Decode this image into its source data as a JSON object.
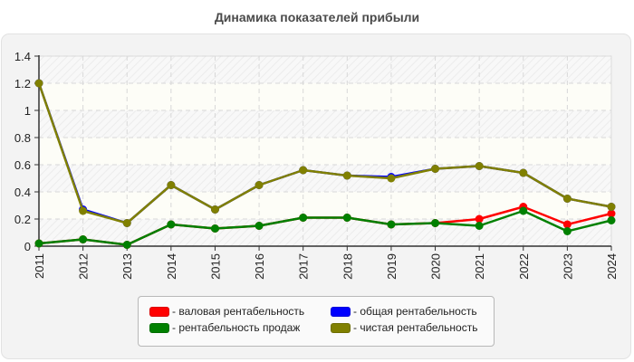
{
  "title": "Динамика показателей прибыли",
  "legend": [
    {
      "label": "- валовая рентабельность",
      "color": "#ff0000"
    },
    {
      "label": "- общая рентабельность",
      "color": "#0000ff"
    },
    {
      "label": "- рентабельность продаж",
      "color": "#008000"
    },
    {
      "label": "- чистая рентабельность",
      "color": "#808000"
    }
  ],
  "chart_data": {
    "type": "line",
    "title": "Динамика показателей прибыли",
    "xlabel": "",
    "ylabel": "",
    "x": [
      "2011",
      "2012",
      "2013",
      "2014",
      "2015",
      "2016",
      "2017",
      "2018",
      "2019",
      "2020",
      "2021",
      "2022",
      "2023",
      "2024"
    ],
    "yticks": [
      "0",
      "0.2",
      "0.4",
      "0.6",
      "0.8",
      "1",
      "1.2",
      "1.4"
    ],
    "ylim": [
      0,
      1.4
    ],
    "grid": true,
    "legend_position": "bottom",
    "series": [
      {
        "name": "валовая рентабельность",
        "color": "#ff0000",
        "values": [
          0.02,
          0.05,
          0.01,
          0.16,
          0.13,
          0.15,
          0.21,
          0.21,
          0.16,
          0.17,
          0.2,
          0.29,
          0.16,
          0.24
        ]
      },
      {
        "name": "общая рентабельность",
        "color": "#0000ff",
        "values": [
          1.2,
          0.27,
          0.17,
          0.45,
          0.27,
          0.45,
          0.56,
          0.52,
          0.51,
          0.57,
          0.59,
          0.54,
          0.35,
          0.29
        ]
      },
      {
        "name": "рентабельность продаж",
        "color": "#008000",
        "values": [
          0.02,
          0.05,
          0.01,
          0.16,
          0.13,
          0.15,
          0.21,
          0.21,
          0.16,
          0.17,
          0.15,
          0.26,
          0.11,
          0.19
        ]
      },
      {
        "name": "чистая рентабельность",
        "color": "#808000",
        "values": [
          1.2,
          0.26,
          0.17,
          0.45,
          0.27,
          0.45,
          0.56,
          0.52,
          0.5,
          0.57,
          0.59,
          0.54,
          0.35,
          0.29
        ]
      }
    ]
  }
}
